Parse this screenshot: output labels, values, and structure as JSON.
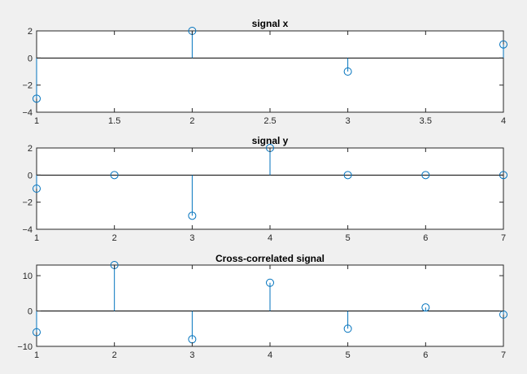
{
  "figure": {
    "background": "#f0f0f0",
    "stem_color": "#0072bd",
    "axis_color": "#262626"
  },
  "chart_data": [
    {
      "type": "stem",
      "title": "signal x",
      "xlabel": "",
      "ylabel": "",
      "x": [
        1,
        2,
        3,
        4
      ],
      "values": [
        -3,
        2,
        -1,
        1
      ],
      "xlim": [
        1,
        4
      ],
      "ylim": [
        -4,
        2
      ],
      "xticks": [
        1,
        1.5,
        2,
        2.5,
        3,
        3.5,
        4
      ],
      "xtick_labels": [
        "1",
        "1.5",
        "2",
        "2.5",
        "3",
        "3.5",
        "4"
      ],
      "yticks": [
        -4,
        -2,
        0,
        2
      ],
      "ytick_labels": [
        "−4",
        "−2",
        "0",
        "2"
      ],
      "grid": false
    },
    {
      "type": "stem",
      "title": "signal y",
      "xlabel": "",
      "ylabel": "",
      "x": [
        1,
        2,
        3,
        4,
        5,
        6,
        7
      ],
      "values": [
        -1,
        0,
        -3,
        2,
        0,
        0,
        0
      ],
      "xlim": [
        1,
        7
      ],
      "ylim": [
        -4,
        2
      ],
      "xticks": [
        1,
        2,
        3,
        4,
        5,
        6,
        7
      ],
      "xtick_labels": [
        "1",
        "2",
        "3",
        "4",
        "5",
        "6",
        "7"
      ],
      "yticks": [
        -4,
        -2,
        0,
        2
      ],
      "ytick_labels": [
        "−4",
        "−2",
        "0",
        "2"
      ],
      "grid": false
    },
    {
      "type": "stem",
      "title": "Cross-correlated signal",
      "xlabel": "",
      "ylabel": "",
      "x": [
        1,
        2,
        3,
        4,
        5,
        6,
        7
      ],
      "values": [
        -6,
        13,
        -8,
        8,
        -5,
        1,
        -1
      ],
      "xlim": [
        1,
        7
      ],
      "ylim": [
        -10,
        13
      ],
      "xticks": [
        1,
        2,
        3,
        4,
        5,
        6,
        7
      ],
      "xtick_labels": [
        "1",
        "2",
        "3",
        "4",
        "5",
        "6",
        "7"
      ],
      "yticks": [
        -10,
        0,
        10
      ],
      "ytick_labels": [
        "−10",
        "0",
        "10"
      ],
      "grid": false
    }
  ]
}
